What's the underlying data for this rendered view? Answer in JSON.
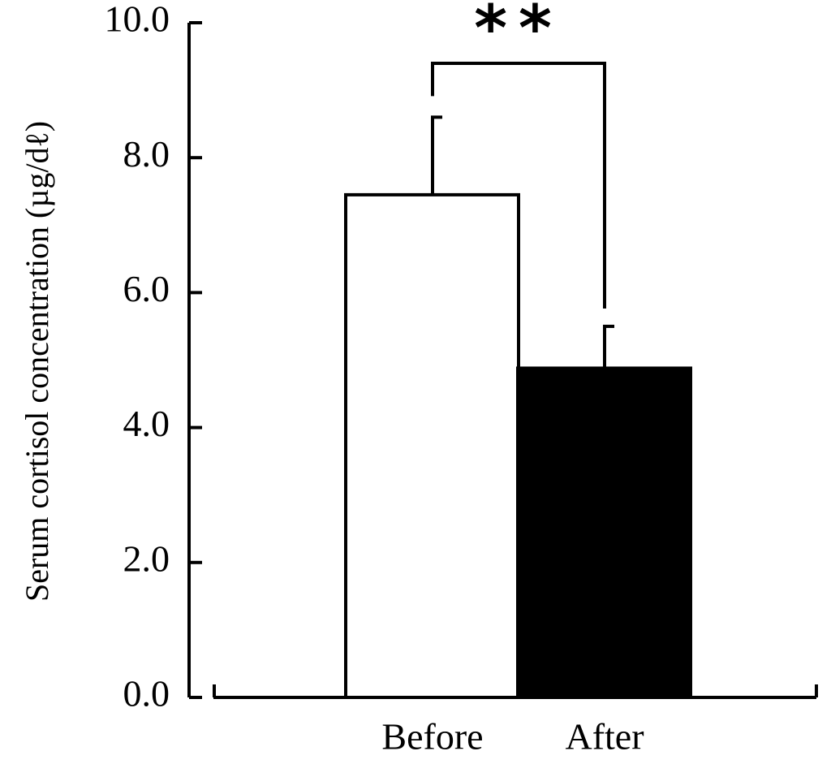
{
  "chart_data": {
    "type": "bar",
    "title": "",
    "xlabel": "",
    "ylabel": "Serum cortisol concentration (µg/dℓ)",
    "ylim": [
      0,
      10
    ],
    "yticks": [
      "0.0",
      "2.0",
      "4.0",
      "6.0",
      "8.0",
      "10.0"
    ],
    "categories": [
      "Before",
      "After"
    ],
    "values": [
      7.45,
      4.88
    ],
    "errors": [
      1.15,
      0.62
    ],
    "bar_fills": [
      "#ffffff",
      "#000000"
    ],
    "significance": {
      "label": "**",
      "between": [
        "Before",
        "After"
      ]
    },
    "grid": false,
    "legend": "none"
  }
}
